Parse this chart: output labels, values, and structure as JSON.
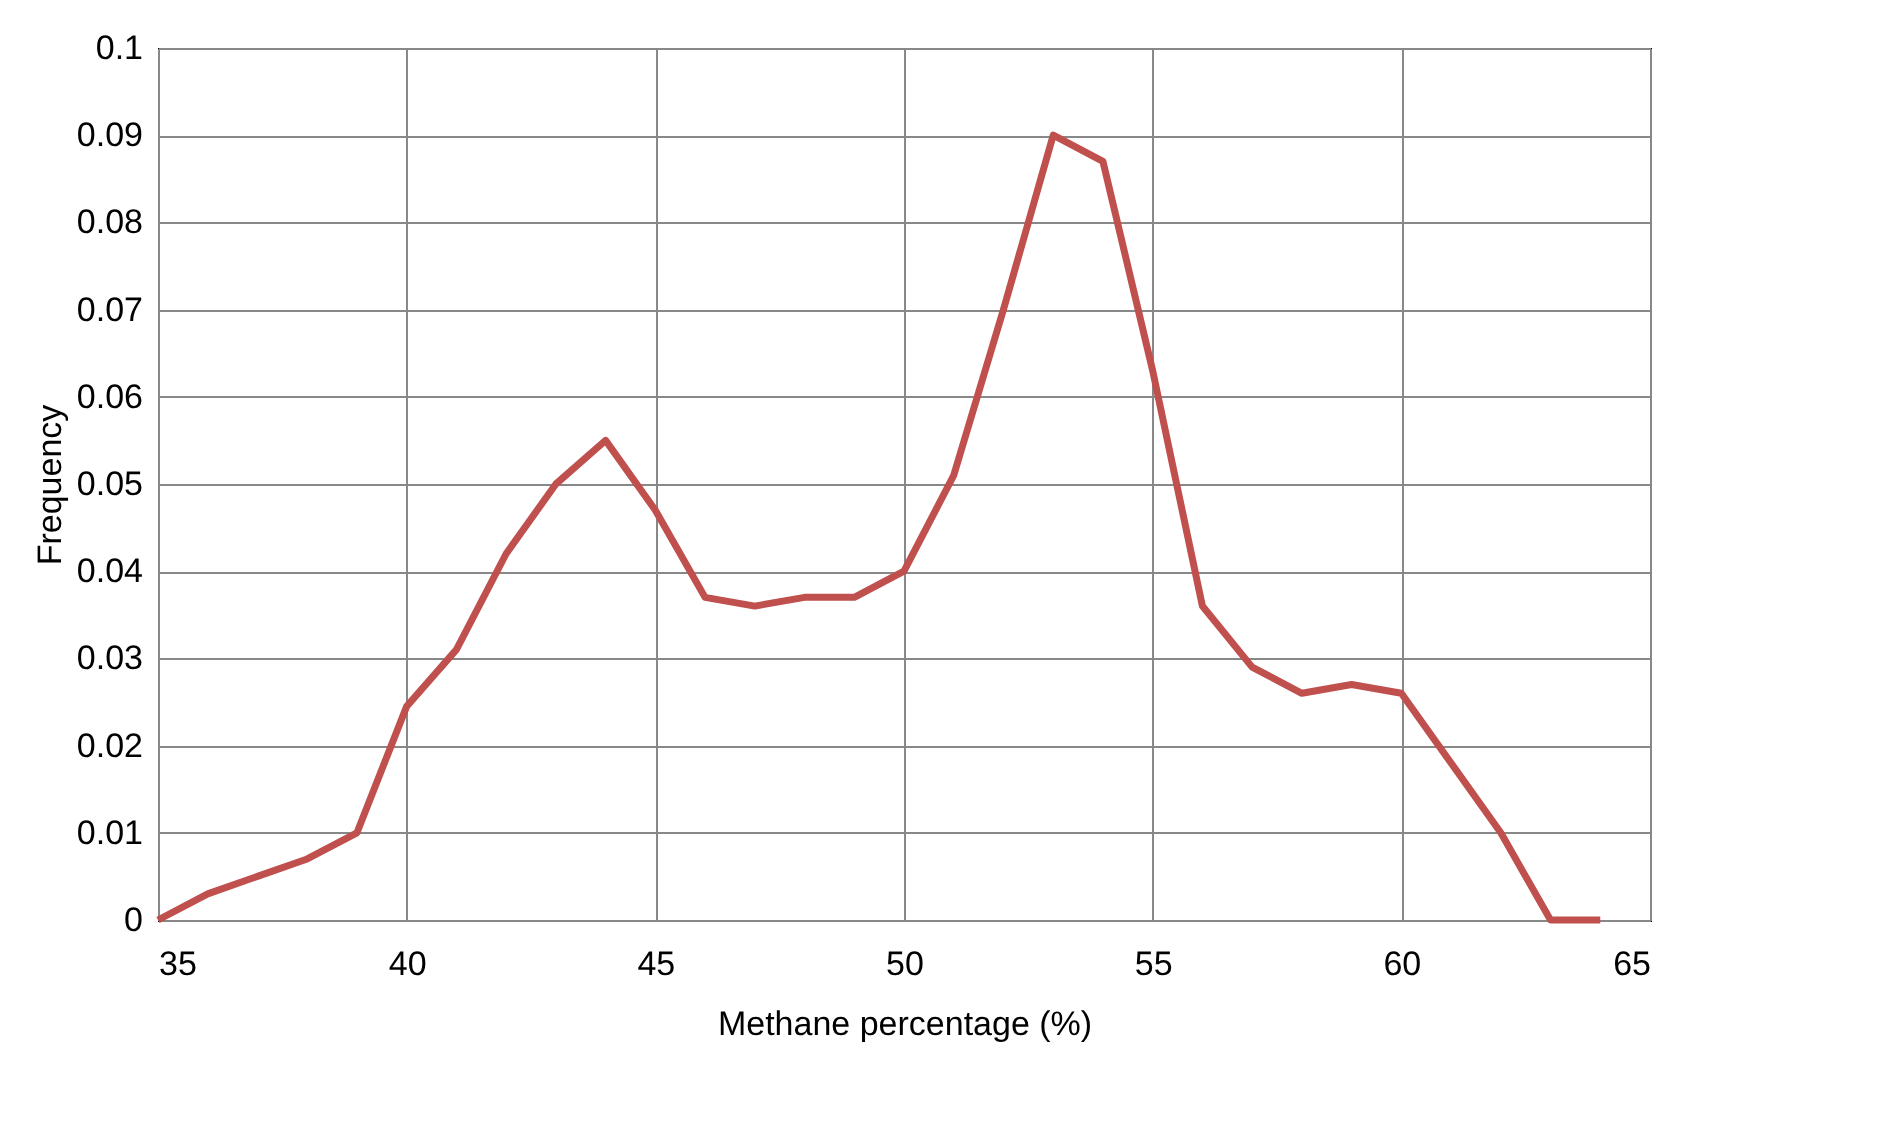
{
  "chart_data": {
    "type": "line",
    "xlabel": "Methane percentage (%)",
    "ylabel": "Frequency",
    "x": [
      35,
      36,
      37,
      38,
      39,
      40,
      41,
      42,
      43,
      44,
      45,
      46,
      47,
      48,
      49,
      50,
      51,
      52,
      53,
      54,
      55,
      56,
      57,
      58,
      59,
      60,
      61,
      62,
      63,
      64
    ],
    "series": [
      {
        "color": "#c0504d",
        "values": [
          0,
          0.003,
          0.005,
          0.007,
          0.01,
          0.0245,
          0.031,
          0.042,
          0.05,
          0.055,
          0.047,
          0.037,
          0.036,
          0.037,
          0.037,
          0.04,
          0.051,
          0.07,
          0.09,
          0.087,
          0.063,
          0.036,
          0.029,
          0.026,
          0.027,
          0.026,
          0.018,
          0.01,
          0,
          0
        ]
      }
    ],
    "xlim": [
      35,
      65
    ],
    "xticks": [
      35,
      40,
      45,
      50,
      55,
      60,
      65
    ],
    "ylim": [
      0,
      0.1
    ],
    "yticks": [
      0,
      0.01,
      0.02,
      0.03,
      0.04,
      0.05,
      0.06,
      0.07,
      0.08,
      0.09,
      0.1
    ],
    "grid": true,
    "marker": "none",
    "line_style": "solid"
  }
}
